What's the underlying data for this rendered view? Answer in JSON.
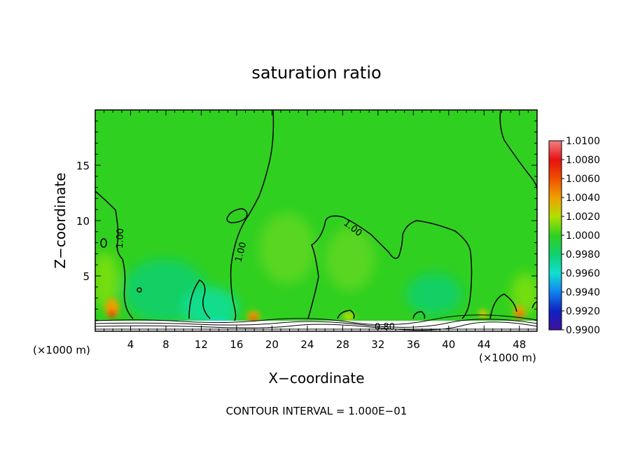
{
  "chart_data": {
    "type": "heatmap",
    "title": "saturation ratio",
    "xlabel": "X−coordinate",
    "ylabel": "Z−coordinate",
    "x_unit": "(×1000 m)",
    "z_unit": "(×1000 m)",
    "xlim": [
      0,
      50
    ],
    "ylim": [
      0,
      20
    ],
    "x_ticks": [
      "4",
      "8",
      "12",
      "16",
      "20",
      "24",
      "28",
      "32",
      "36",
      "40",
      "44",
      "48"
    ],
    "y_ticks": [
      "5",
      "10",
      "15"
    ],
    "colorbar": {
      "levels": [
        "1.0100",
        "1.0080",
        "1.0060",
        "1.0040",
        "1.0020",
        "1.0000",
        "0.9980",
        "0.9960",
        "0.9940",
        "0.9920",
        "0.9900"
      ],
      "colors": [
        "#f08080",
        "#e81010",
        "#f05000",
        "#f0a000",
        "#b0e000",
        "#30d020",
        "#10d070",
        "#10e0d0",
        "#1080f0",
        "#1020c0",
        "#4010a0"
      ]
    },
    "contour_labels": [
      "1.00",
      "1.00",
      "1.00",
      "0.80"
    ],
    "footer": "CONTOUR INTERVAL = 1.000E−01",
    "grid": false,
    "legend": "right-colorbar"
  }
}
